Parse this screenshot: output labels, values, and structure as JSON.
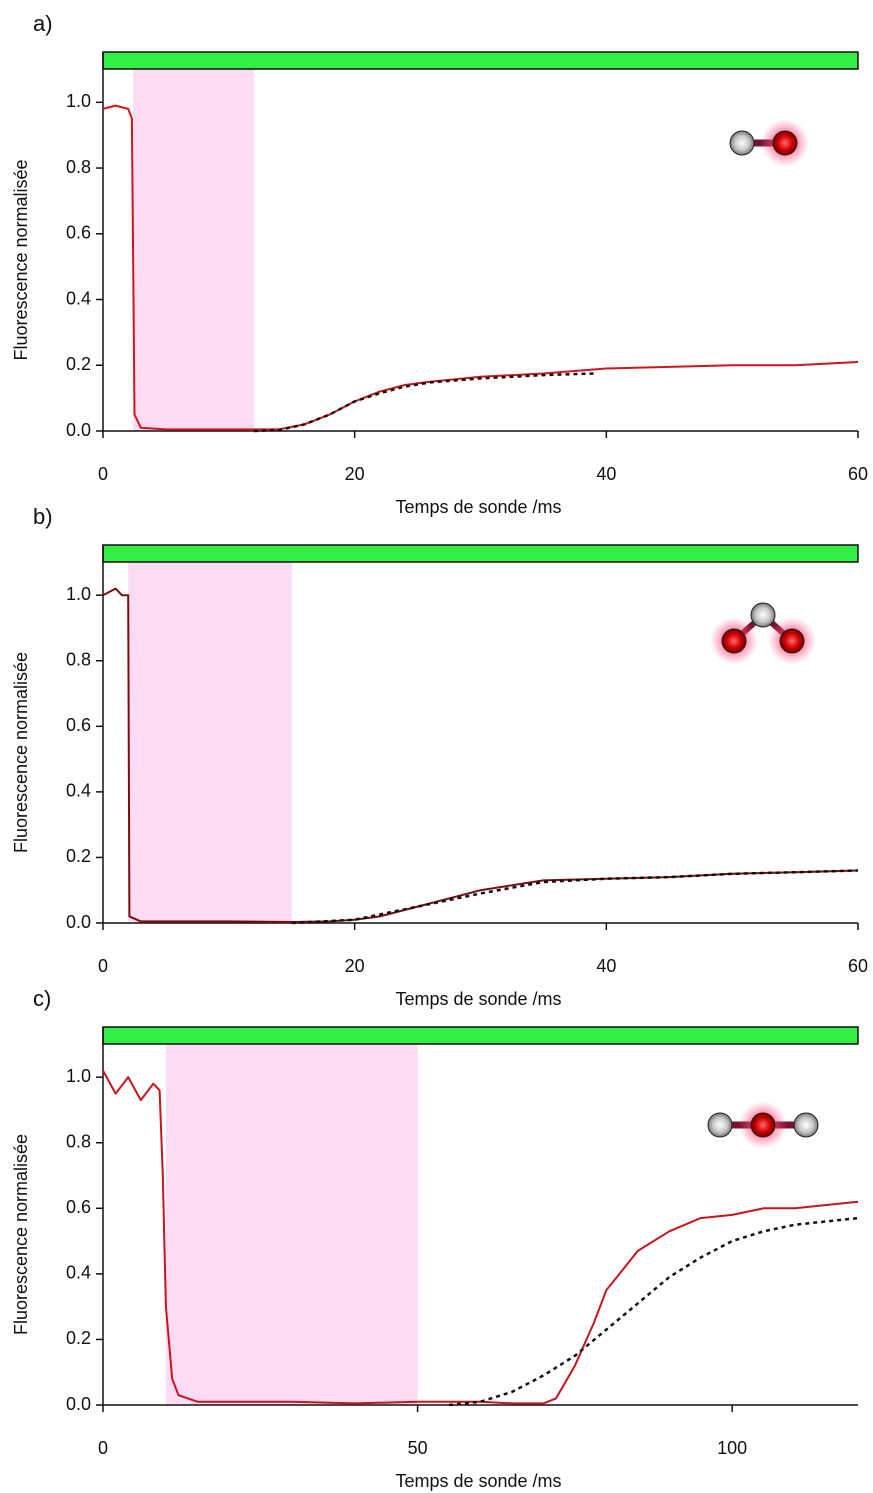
{
  "chart_data": [
    {
      "type": "line",
      "panel_label": "a)",
      "xlabel": "Temps de sonde /ms",
      "ylabel": "Fluorescence normalisée",
      "xlim": [
        0,
        60
      ],
      "xticks": [
        0,
        20,
        40,
        60
      ],
      "ylim": [
        0,
        1.15
      ],
      "yticks": [
        {
          "value": 0,
          "label": "0.0"
        },
        0.2,
        0.4,
        0.6,
        0.8,
        {
          "value": 1,
          "label": "1.0"
        }
      ],
      "shaded_region": [
        2.4,
        12
      ],
      "series": [
        {
          "color": "#d0161b",
          "style": "solid",
          "x": [
            0,
            1,
            2,
            2.3,
            2.5,
            3,
            5,
            10,
            14,
            16,
            18,
            20,
            22,
            24,
            26,
            30,
            35,
            40,
            45,
            50,
            55,
            60
          ],
          "values": [
            0.98,
            0.99,
            0.98,
            0.95,
            0.05,
            0.01,
            0.005,
            0.005,
            0.005,
            0.02,
            0.05,
            0.09,
            0.12,
            0.14,
            0.15,
            0.165,
            0.175,
            0.19,
            0.195,
            0.2,
            0.2,
            0.21
          ]
        },
        {
          "color": "#111111",
          "style": "dashed",
          "x": [
            12,
            14,
            16,
            18,
            20,
            22,
            24,
            26,
            30,
            35,
            39
          ],
          "values": [
            0,
            0.003,
            0.02,
            0.05,
            0.09,
            0.115,
            0.135,
            0.148,
            0.16,
            0.17,
            0.175
          ]
        }
      ]
    },
    {
      "type": "line",
      "panel_label": "b)",
      "xlabel": "Temps de sonde /ms",
      "ylabel": "Fluorescence normalisée",
      "xlim": [
        0,
        60
      ],
      "xticks": [
        0,
        20,
        40,
        60
      ],
      "ylim": [
        0,
        1.15
      ],
      "yticks": [
        {
          "value": 0,
          "label": "0.0"
        },
        0.2,
        0.4,
        0.6,
        0.8,
        {
          "value": 1,
          "label": "1.0"
        }
      ],
      "shaded_region": [
        2,
        15
      ],
      "series": [
        {
          "color": "#7a0d0d",
          "style": "solid",
          "x": [
            0,
            1,
            1.5,
            2,
            2.1,
            3,
            10,
            15,
            18,
            20,
            22,
            25,
            28,
            30,
            35,
            40,
            45,
            50,
            55,
            60
          ],
          "values": [
            1.0,
            1.02,
            1.0,
            1.0,
            0.02,
            0.005,
            0.005,
            0.003,
            0.005,
            0.01,
            0.02,
            0.05,
            0.08,
            0.1,
            0.13,
            0.135,
            0.14,
            0.15,
            0.155,
            0.16
          ]
        },
        {
          "color": "#111111",
          "style": "dashed",
          "x": [
            15,
            20,
            25,
            30,
            35,
            40,
            45,
            50,
            55,
            60
          ],
          "values": [
            0,
            0.01,
            0.05,
            0.09,
            0.125,
            0.135,
            0.14,
            0.15,
            0.155,
            0.16
          ]
        }
      ]
    },
    {
      "type": "line",
      "panel_label": "c)",
      "xlabel": "Temps de sonde /ms",
      "ylabel": "Fluorescence normalisée",
      "xlim": [
        0,
        120
      ],
      "xticks": [
        0,
        50,
        100
      ],
      "ylim": [
        0,
        1.15
      ],
      "yticks": [
        {
          "value": 0,
          "label": "0.0"
        },
        0.2,
        0.4,
        0.6,
        0.8,
        {
          "value": 1,
          "label": "1.0"
        }
      ],
      "shaded_region": [
        10,
        50
      ],
      "series": [
        {
          "color": "#c8141a",
          "style": "solid",
          "x": [
            0,
            2,
            4,
            6,
            8,
            9,
            9.5,
            10,
            11,
            12,
            15,
            20,
            30,
            40,
            50,
            60,
            65,
            70,
            72,
            75,
            78,
            80,
            85,
            90,
            95,
            100,
            105,
            110,
            115,
            120
          ],
          "values": [
            1.02,
            0.95,
            1.0,
            0.93,
            0.98,
            0.96,
            0.7,
            0.3,
            0.08,
            0.03,
            0.01,
            0.01,
            0.01,
            0.005,
            0.01,
            0.01,
            0.005,
            0.005,
            0.02,
            0.12,
            0.25,
            0.35,
            0.47,
            0.53,
            0.57,
            0.58,
            0.6,
            0.6,
            0.61,
            0.62
          ]
        },
        {
          "color": "#111111",
          "style": "dashed",
          "x": [
            55,
            60,
            65,
            70,
            75,
            80,
            85,
            90,
            95,
            100,
            105,
            110,
            115,
            120
          ],
          "values": [
            0,
            0.01,
            0.04,
            0.09,
            0.15,
            0.23,
            0.31,
            0.39,
            0.45,
            0.5,
            0.53,
            0.55,
            0.56,
            0.57
          ]
        }
      ]
    }
  ]
}
